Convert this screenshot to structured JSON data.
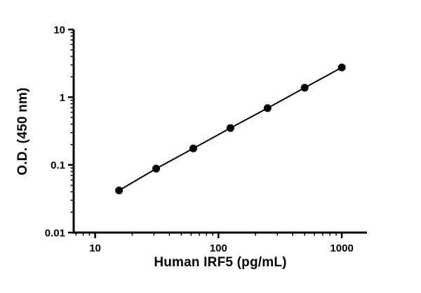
{
  "chart_data": {
    "type": "line",
    "title": "",
    "xlabel": "Human IRF5 (pg/mL)",
    "ylabel": "O.D. (450 nm)",
    "xscale": "log",
    "yscale": "log",
    "xlim": [
      6.7,
      1600
    ],
    "ylim": [
      0.01,
      10
    ],
    "x": [
      15.63,
      31.25,
      62.5,
      125,
      250,
      500,
      1000
    ],
    "y": [
      0.042,
      0.088,
      0.175,
      0.35,
      0.69,
      1.38,
      2.75
    ],
    "x_ticks": [
      10,
      100,
      1000
    ],
    "x_tick_labels": [
      "10",
      "100",
      "1000"
    ],
    "y_ticks": [
      0.01,
      0.1,
      1,
      10
    ],
    "y_tick_labels": [
      "0.01",
      "0.1",
      "1",
      "10"
    ],
    "grid": false,
    "legend": null,
    "marker": "filled-circle",
    "line_color": "#000000",
    "marker_color": "#000000",
    "axis_color": "#000000",
    "background_color": "#ffffff"
  }
}
